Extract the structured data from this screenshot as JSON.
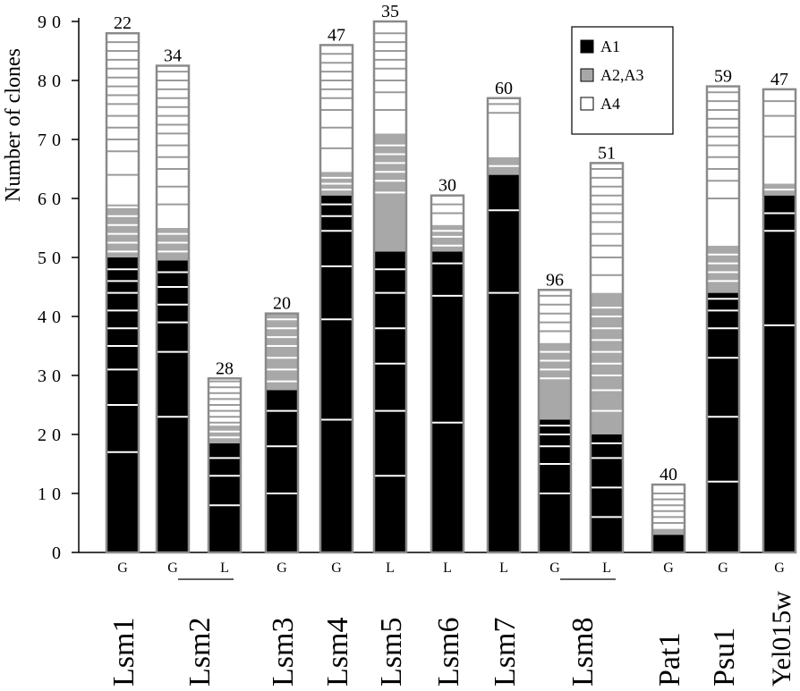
{
  "chart_data": {
    "type": "bar",
    "stacked": true,
    "ylabel": "Number of clones",
    "ylim": [
      0,
      90
    ],
    "yticks": [
      0,
      10,
      20,
      30,
      40,
      50,
      60,
      70,
      80,
      90
    ],
    "grid": false,
    "legend_position": "top-right",
    "legend": [
      {
        "name": "A1",
        "color": "#000000"
      },
      {
        "name": "A2,A3",
        "color": "#a8a8a8"
      },
      {
        "name": "A4",
        "color": "#ffffff"
      }
    ],
    "groups": [
      {
        "label": "Lsm1",
        "underline": false
      },
      {
        "label": "Lsm2",
        "underline": true
      },
      {
        "label": "Lsm3",
        "underline": false
      },
      {
        "label": "Lsm4",
        "underline": false
      },
      {
        "label": "Lsm5",
        "underline": false
      },
      {
        "label": "Lsm6",
        "underline": false
      },
      {
        "label": "Lsm7",
        "underline": false
      },
      {
        "label": "Lsm8",
        "underline": true
      },
      {
        "label": "Pat1",
        "underline": false
      },
      {
        "label": "Psu1",
        "underline": false
      },
      {
        "label": "Yel015w",
        "underline": false
      }
    ],
    "bars": [
      {
        "group": 0,
        "code": "G",
        "total_label": "22",
        "A1": 50,
        "A2A3": 9,
        "A4": 29,
        "a1_lines": [
          17,
          25,
          31,
          35,
          38,
          41,
          44,
          46,
          48
        ],
        "a2_lines": [
          51,
          52.5,
          54,
          55.5,
          57,
          58.5
        ],
        "a4_lines": [
          64,
          68,
          70,
          72,
          74,
          76,
          77.5,
          79,
          80.5,
          82,
          83.5,
          85,
          86.5
        ]
      },
      {
        "group": 1,
        "code": "G",
        "total_label": "34",
        "A1": 49.5,
        "A2A3": 5.5,
        "A4": 27.5,
        "a1_lines": [
          23,
          34,
          39,
          42,
          45,
          47.5
        ],
        "a2_lines": [
          51,
          52.5,
          54
        ],
        "a4_lines": [
          59,
          62,
          65,
          67,
          69,
          71,
          72.5,
          74,
          75.5,
          77,
          78.5,
          80,
          81.5
        ]
      },
      {
        "group": 1,
        "code": "L",
        "total_label": "28",
        "A1": 18.5,
        "A2A3": 3,
        "A4": 8,
        "a1_lines": [
          8,
          13,
          16
        ],
        "a2_lines": [
          19.5,
          20.5
        ],
        "a4_lines": [
          22,
          23,
          24,
          25,
          26,
          27,
          28,
          29
        ]
      },
      {
        "group": 2,
        "code": "G",
        "total_label": "20",
        "A1": 27.5,
        "A2A3": 13,
        "A4": 0,
        "a1_lines": [
          10,
          18,
          24
        ],
        "a2_lines": [
          29,
          31,
          33,
          35,
          36.5,
          38,
          39.5
        ]
      },
      {
        "group": 3,
        "code": "G",
        "total_label": "47",
        "A1": 60.5,
        "A2A3": 4,
        "A4": 21.5,
        "a1_lines": [
          22.5,
          39.5,
          48.5,
          54.5,
          57,
          59
        ],
        "a2_lines": [
          61.5,
          62.5,
          63.5
        ],
        "a4_lines": [
          68.5,
          72,
          75,
          77,
          78.5,
          80,
          81.5,
          83,
          84.5
        ]
      },
      {
        "group": 4,
        "code": "L",
        "total_label": "35",
        "A1": 51,
        "A2A3": 20,
        "A4": 19,
        "a1_lines": [
          13,
          24,
          32,
          38,
          44,
          48
        ],
        "a2_lines": [
          61,
          63,
          64.5,
          66,
          67.5,
          69
        ],
        "a4_lines": [
          75,
          78,
          80,
          82,
          83.5,
          85,
          86.5,
          88
        ]
      },
      {
        "group": 5,
        "code": "L",
        "total_label": "30",
        "A1": 51,
        "A2A3": 4.5,
        "A4": 5,
        "a1_lines": [
          22,
          43.5,
          49
        ],
        "a2_lines": [
          52,
          53.5,
          54.5
        ],
        "a4_lines": [
          57.5,
          59
        ]
      },
      {
        "group": 6,
        "code": "L",
        "total_label": "60",
        "A1": 64,
        "A2A3": 3,
        "A4": 10,
        "a1_lines": [
          44,
          58
        ],
        "a2_lines": [
          65.5
        ],
        "a4_lines": [
          74.5,
          76
        ]
      },
      {
        "group": 7,
        "code": "G",
        "total_label": "96",
        "A1": 22.5,
        "A2A3": 13,
        "A4": 9,
        "a1_lines": [
          10,
          15,
          18,
          20,
          21.5
        ],
        "a2_lines": [
          29.5,
          31,
          32.5,
          34
        ],
        "a4_lines": [
          37.5,
          39,
          40.5,
          42,
          43.5
        ]
      },
      {
        "group": 7,
        "code": "L",
        "total_label": "51",
        "A1": 20,
        "A2A3": 24,
        "A4": 22,
        "a1_lines": [
          6,
          11,
          16,
          18.5
        ],
        "a2_lines": [
          24,
          27.5,
          30,
          32,
          34,
          36,
          38,
          40,
          41.5
        ],
        "a4_lines": [
          47,
          50,
          52,
          54,
          56,
          57.5,
          59,
          60.5,
          62,
          63.5,
          65
        ]
      },
      {
        "group": 8,
        "code": "G",
        "total_label": "40",
        "A1": 3,
        "A2A3": 1,
        "A4": 7.5,
        "a1_lines": [],
        "a2_lines": [],
        "a4_lines": [
          5,
          6,
          7,
          8,
          9,
          10
        ]
      },
      {
        "group": 9,
        "code": "G",
        "total_label": "59",
        "A1": 44,
        "A2A3": 8,
        "A4": 27,
        "a1_lines": [
          12,
          23,
          33,
          38,
          41,
          43
        ],
        "a2_lines": [
          46,
          47.5,
          49,
          50.5
        ],
        "a4_lines": [
          60,
          63,
          65,
          67,
          69,
          70.5,
          72,
          73.5,
          75,
          76.5,
          78
        ]
      },
      {
        "group": 10,
        "code": "G",
        "total_label": "47",
        "A1": 60.5,
        "A2A3": 2,
        "A4": 16,
        "a1_lines": [
          38.5,
          54.5,
          57.5
        ],
        "a2_lines": [
          61.5
        ],
        "a4_lines": [
          70.5,
          74,
          76.5
        ]
      }
    ]
  }
}
